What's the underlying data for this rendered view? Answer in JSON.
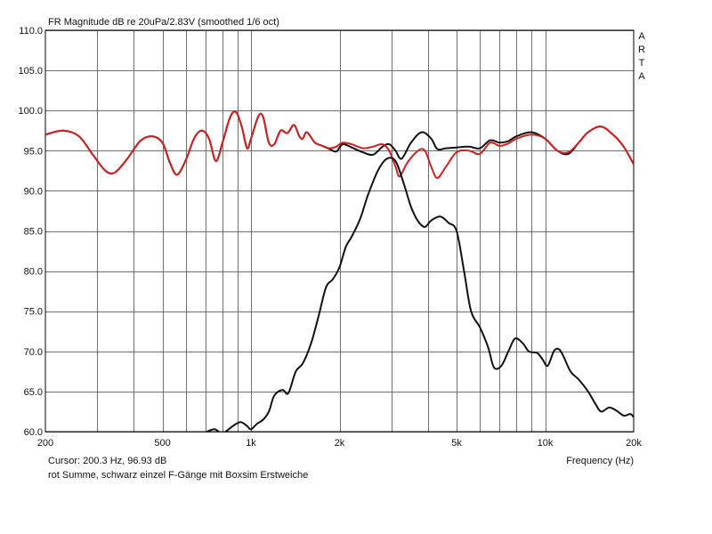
{
  "chart_data": {
    "type": "line",
    "title": "FR Magnitude dB re 20uPa/2.83V (smoothed 1/6 oct)",
    "brand": "ARTA",
    "xlabel": "Frequency (Hz)",
    "x_scale": "log",
    "xlim": [
      200,
      20000
    ],
    "ylim": [
      60,
      110
    ],
    "y_ticks": [
      110,
      105,
      100,
      95,
      90,
      85,
      80,
      75,
      70,
      65,
      60
    ],
    "y_tick_labels": [
      "110.0",
      "105.0",
      "100.0",
      "95.0",
      "90.0",
      "85.0",
      "80.0",
      "75.0",
      "70.0",
      "65.0",
      "60.0"
    ],
    "x_tick_labels": [
      {
        "f": 200,
        "label": "200"
      },
      {
        "f": 500,
        "label": "500"
      },
      {
        "f": 1000,
        "label": "1k"
      },
      {
        "f": 2000,
        "label": "2k"
      },
      {
        "f": 5000,
        "label": "5k"
      },
      {
        "f": 10000,
        "label": "10k"
      },
      {
        "f": 20000,
        "label": "20k"
      }
    ],
    "x_gridlines": [
      300,
      400,
      500,
      600,
      700,
      800,
      900,
      1000,
      2000,
      3000,
      4000,
      5000,
      6000,
      7000,
      8000,
      9000,
      10000
    ],
    "cursor_text": "Cursor: 200.3 Hz, 96.93 dB",
    "note": "rot Summe, schwarz einzel F-Gänge mit Boxsim Erstweiche",
    "colors": {
      "red": "#cc2222",
      "black": "#111111",
      "grid": "#6f6f6f"
    },
    "series": [
      {
        "color": "black",
        "points": [
          [
            200,
            97.0
          ],
          [
            230,
            97.5
          ],
          [
            260,
            96.8
          ],
          [
            290,
            94.5
          ],
          [
            320,
            92.5
          ],
          [
            345,
            92.3
          ],
          [
            380,
            94.0
          ],
          [
            420,
            96.2
          ],
          [
            460,
            96.8
          ],
          [
            500,
            96.0
          ],
          [
            530,
            93.5
          ],
          [
            560,
            92.0
          ],
          [
            600,
            93.8
          ],
          [
            640,
            96.5
          ],
          [
            680,
            97.5
          ],
          [
            720,
            96.5
          ],
          [
            760,
            93.7
          ],
          [
            800,
            96.0
          ],
          [
            850,
            99.2
          ],
          [
            890,
            99.8
          ],
          [
            930,
            98.0
          ],
          [
            970,
            95.3
          ],
          [
            1000,
            96.5
          ],
          [
            1060,
            99.3
          ],
          [
            1100,
            99.2
          ],
          [
            1150,
            96.0
          ],
          [
            1200,
            95.8
          ],
          [
            1260,
            97.5
          ],
          [
            1330,
            97.2
          ],
          [
            1400,
            98.2
          ],
          [
            1460,
            96.8
          ],
          [
            1500,
            96.5
          ],
          [
            1550,
            97.3
          ],
          [
            1650,
            96.0
          ],
          [
            1750,
            95.6
          ],
          [
            1850,
            95.2
          ],
          [
            1950,
            94.9
          ],
          [
            2050,
            95.8
          ],
          [
            2200,
            95.4
          ],
          [
            2400,
            94.8
          ],
          [
            2600,
            94.5
          ],
          [
            2800,
            95.5
          ],
          [
            2950,
            95.8
          ],
          [
            3100,
            95.0
          ],
          [
            3250,
            94.0
          ],
          [
            3500,
            96.0
          ],
          [
            3800,
            97.3
          ],
          [
            4100,
            96.5
          ],
          [
            4300,
            95.2
          ],
          [
            4600,
            95.3
          ],
          [
            5000,
            95.4
          ],
          [
            5500,
            95.5
          ],
          [
            6000,
            95.3
          ],
          [
            6500,
            96.3
          ],
          [
            7000,
            96.0
          ],
          [
            7500,
            96.2
          ],
          [
            8000,
            96.8
          ],
          [
            9000,
            97.3
          ],
          [
            10000,
            96.5
          ],
          [
            11000,
            95.0
          ],
          [
            12000,
            94.6
          ],
          [
            13000,
            96.0
          ],
          [
            14000,
            97.3
          ],
          [
            15500,
            98.0
          ],
          [
            17000,
            97.0
          ],
          [
            18500,
            95.5
          ],
          [
            20000,
            93.3
          ]
        ]
      },
      {
        "color": "red",
        "points": [
          [
            200,
            97.0
          ],
          [
            230,
            97.5
          ],
          [
            260,
            96.8
          ],
          [
            290,
            94.5
          ],
          [
            320,
            92.5
          ],
          [
            345,
            92.3
          ],
          [
            380,
            94.0
          ],
          [
            420,
            96.2
          ],
          [
            460,
            96.8
          ],
          [
            500,
            96.0
          ],
          [
            530,
            93.5
          ],
          [
            560,
            92.0
          ],
          [
            600,
            93.8
          ],
          [
            640,
            96.5
          ],
          [
            680,
            97.5
          ],
          [
            720,
            96.5
          ],
          [
            760,
            93.7
          ],
          [
            800,
            96.0
          ],
          [
            850,
            99.2
          ],
          [
            890,
            99.8
          ],
          [
            930,
            98.0
          ],
          [
            970,
            95.3
          ],
          [
            1000,
            96.5
          ],
          [
            1060,
            99.3
          ],
          [
            1100,
            99.2
          ],
          [
            1150,
            96.0
          ],
          [
            1200,
            95.8
          ],
          [
            1260,
            97.5
          ],
          [
            1330,
            97.2
          ],
          [
            1400,
            98.2
          ],
          [
            1460,
            96.8
          ],
          [
            1500,
            96.5
          ],
          [
            1550,
            97.3
          ],
          [
            1650,
            96.0
          ],
          [
            1750,
            95.6
          ],
          [
            1850,
            95.3
          ],
          [
            1950,
            95.5
          ],
          [
            2050,
            96.0
          ],
          [
            2200,
            95.8
          ],
          [
            2400,
            95.3
          ],
          [
            2600,
            95.5
          ],
          [
            2800,
            95.8
          ],
          [
            2950,
            95.0
          ],
          [
            3100,
            93.0
          ],
          [
            3200,
            91.8
          ],
          [
            3400,
            93.5
          ],
          [
            3700,
            95.0
          ],
          [
            3900,
            95.0
          ],
          [
            4100,
            93.0
          ],
          [
            4300,
            91.6
          ],
          [
            4600,
            93.0
          ],
          [
            5000,
            94.8
          ],
          [
            5500,
            95.0
          ],
          [
            6000,
            94.6
          ],
          [
            6500,
            96.0
          ],
          [
            7000,
            95.6
          ],
          [
            7500,
            95.9
          ],
          [
            8000,
            96.5
          ],
          [
            9000,
            97.0
          ],
          [
            10000,
            96.5
          ],
          [
            11000,
            95.0
          ],
          [
            12000,
            94.8
          ],
          [
            13000,
            96.0
          ],
          [
            14000,
            97.3
          ],
          [
            15500,
            98.0
          ],
          [
            17000,
            97.0
          ],
          [
            18500,
            95.5
          ],
          [
            20000,
            93.3
          ]
        ]
      },
      {
        "color": "black",
        "points": [
          [
            690,
            59.8
          ],
          [
            750,
            60.3
          ],
          [
            800,
            59.8
          ],
          [
            860,
            60.6
          ],
          [
            920,
            61.2
          ],
          [
            970,
            60.7
          ],
          [
            1000,
            60.3
          ],
          [
            1050,
            61.0
          ],
          [
            1100,
            61.5
          ],
          [
            1150,
            62.5
          ],
          [
            1200,
            64.5
          ],
          [
            1280,
            65.2
          ],
          [
            1340,
            64.8
          ],
          [
            1420,
            67.5
          ],
          [
            1500,
            68.5
          ],
          [
            1600,
            71.0
          ],
          [
            1700,
            74.5
          ],
          [
            1800,
            78.0
          ],
          [
            1900,
            79.0
          ],
          [
            2000,
            80.5
          ],
          [
            2100,
            83.0
          ],
          [
            2200,
            84.3
          ],
          [
            2350,
            86.5
          ],
          [
            2500,
            89.5
          ],
          [
            2700,
            92.5
          ],
          [
            2900,
            94.0
          ],
          [
            3100,
            93.7
          ],
          [
            3300,
            91.0
          ],
          [
            3500,
            88.0
          ],
          [
            3700,
            86.2
          ],
          [
            3900,
            85.5
          ],
          [
            4100,
            86.3
          ],
          [
            4400,
            86.8
          ],
          [
            4700,
            86.0
          ],
          [
            5000,
            85.0
          ],
          [
            5300,
            80.0
          ],
          [
            5600,
            75.0
          ],
          [
            6000,
            73.0
          ],
          [
            6400,
            70.5
          ],
          [
            6700,
            68.0
          ],
          [
            7100,
            68.2
          ],
          [
            7500,
            70.0
          ],
          [
            7900,
            71.6
          ],
          [
            8400,
            71.0
          ],
          [
            8800,
            70.0
          ],
          [
            9400,
            69.8
          ],
          [
            9800,
            69.0
          ],
          [
            10200,
            68.2
          ],
          [
            10700,
            70.0
          ],
          [
            11100,
            70.3
          ],
          [
            11500,
            69.5
          ],
          [
            12200,
            67.5
          ],
          [
            13000,
            66.5
          ],
          [
            14000,
            65.0
          ],
          [
            14800,
            63.5
          ],
          [
            15500,
            62.5
          ],
          [
            16500,
            63.0
          ],
          [
            17500,
            62.6
          ],
          [
            18500,
            62.0
          ],
          [
            19500,
            62.2
          ],
          [
            20000,
            61.8
          ]
        ]
      }
    ]
  }
}
